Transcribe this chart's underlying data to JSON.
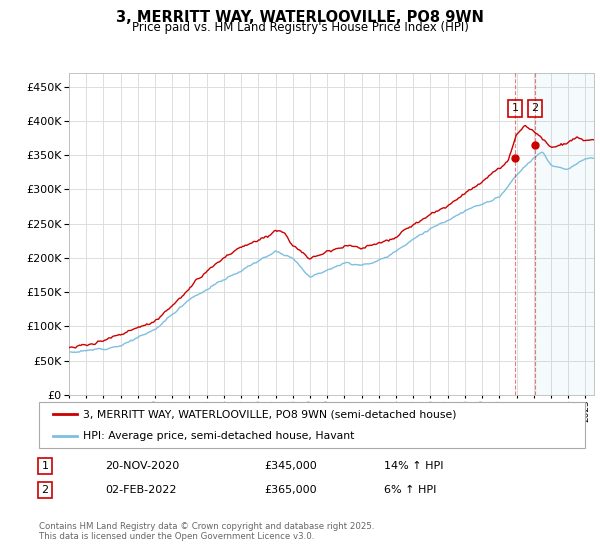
{
  "title": "3, MERRITT WAY, WATERLOOVILLE, PO8 9WN",
  "subtitle": "Price paid vs. HM Land Registry's House Price Index (HPI)",
  "ylim": [
    0,
    470000
  ],
  "yticks": [
    0,
    50000,
    100000,
    150000,
    200000,
    250000,
    300000,
    350000,
    400000,
    450000
  ],
  "hpi_color": "#7fbfdf",
  "price_color": "#cc0000",
  "dashed_line_color": "#cc0000",
  "sale1_x": 2020.92,
  "sale1_price": 345000,
  "sale1_date": "20-NOV-2020",
  "sale1_hpi_pct": "14%",
  "sale2_x": 2022.08,
  "sale2_price": 365000,
  "sale2_date": "02-FEB-2022",
  "sale2_hpi_pct": "6%",
  "legend_label1": "3, MERRITT WAY, WATERLOOVILLE, PO8 9WN (semi-detached house)",
  "legend_label2": "HPI: Average price, semi-detached house, Havant",
  "footer": "Contains HM Land Registry data © Crown copyright and database right 2025.\nThis data is licensed under the Open Government Licence v3.0.",
  "background_color": "#ffffff",
  "grid_color": "#dddddd",
  "hpi_key_years": [
    1995,
    1996,
    1998,
    2000,
    2002,
    2004,
    2006,
    2007,
    2008,
    2009,
    2010,
    2011,
    2012,
    2013,
    2014,
    2015,
    2016,
    2017,
    2018,
    2019,
    2020,
    2021,
    2022,
    2022.5,
    2023,
    2024,
    2025
  ],
  "hpi_key_values": [
    62000,
    64000,
    72000,
    95000,
    140000,
    168000,
    195000,
    210000,
    200000,
    172000,
    183000,
    192000,
    190000,
    195000,
    210000,
    228000,
    242000,
    255000,
    268000,
    278000,
    288000,
    320000,
    345000,
    355000,
    335000,
    330000,
    345000
  ],
  "price_key_years": [
    1995,
    1996,
    1997,
    1998,
    1999,
    2000,
    2001,
    2002,
    2003,
    2004,
    2005,
    2006,
    2007,
    2007.5,
    2008,
    2009,
    2010,
    2011,
    2012,
    2013,
    2014,
    2015,
    2016,
    2017,
    2018,
    2019,
    2020,
    2020.5,
    2021,
    2021.5,
    2022,
    2022.5,
    2023,
    2024,
    2024.5,
    2025
  ],
  "price_key_values": [
    68000,
    72000,
    80000,
    88000,
    98000,
    108000,
    130000,
    155000,
    180000,
    200000,
    215000,
    225000,
    240000,
    238000,
    218000,
    198000,
    210000,
    218000,
    215000,
    220000,
    230000,
    248000,
    263000,
    275000,
    295000,
    310000,
    330000,
    340000,
    380000,
    395000,
    385000,
    375000,
    360000,
    368000,
    375000,
    370000
  ]
}
